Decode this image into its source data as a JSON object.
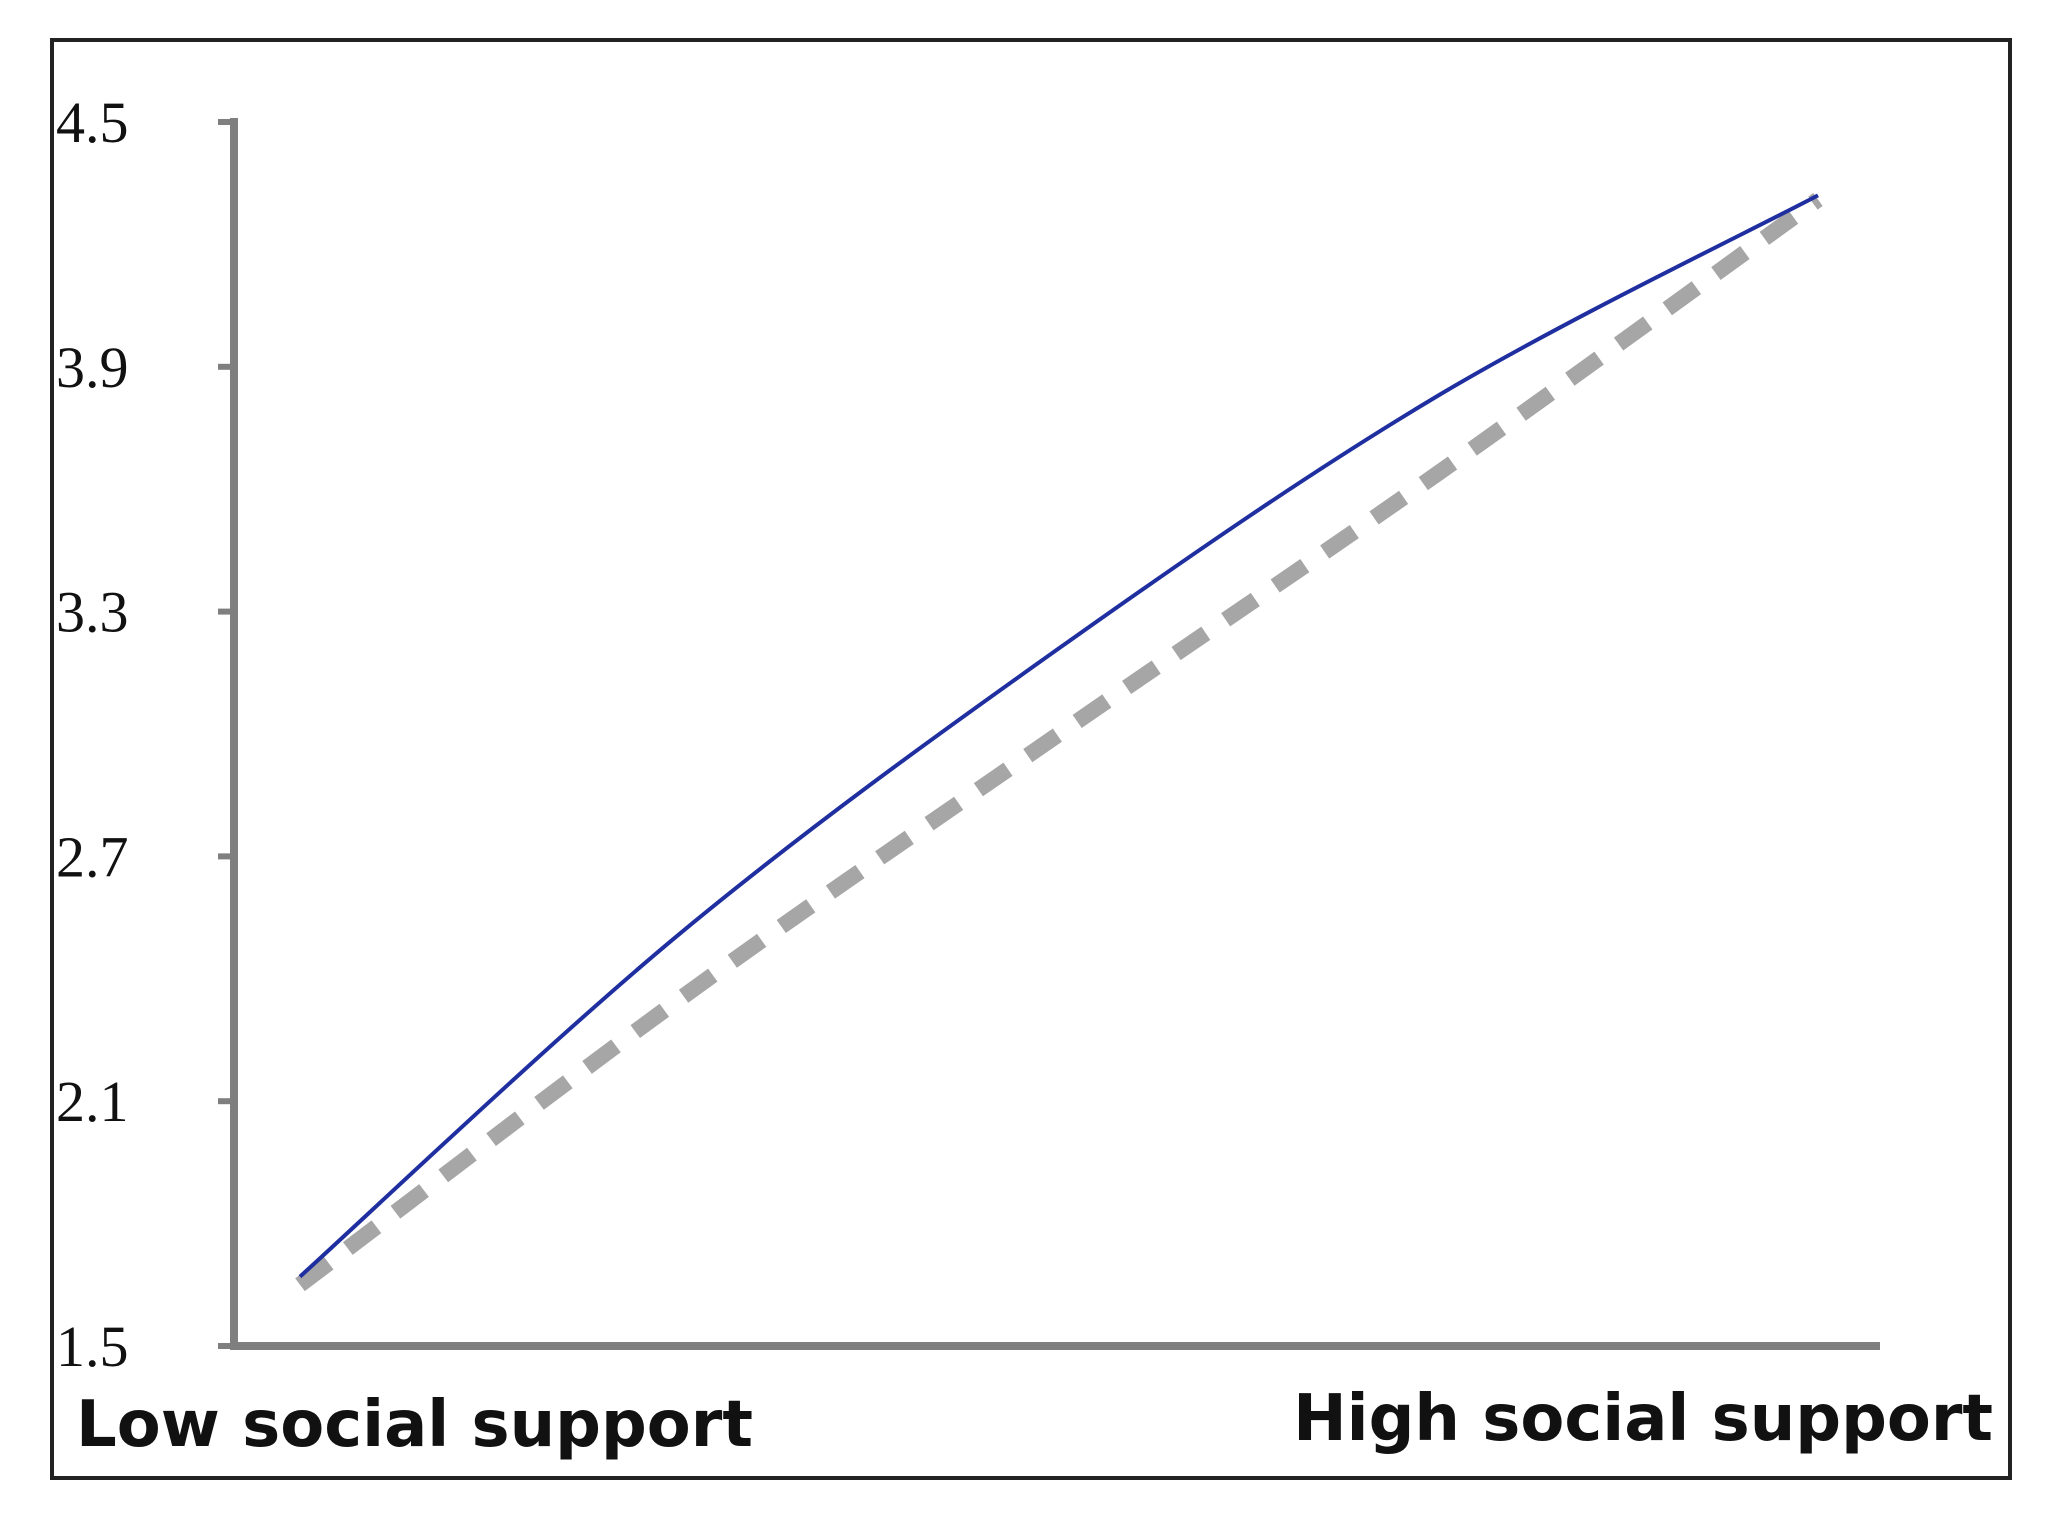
{
  "chart_data": {
    "type": "line",
    "title": "",
    "xlabel": "",
    "ylabel": "",
    "categories": [
      "Low social support",
      "High social support"
    ],
    "ylim": [
      1.5,
      4.5
    ],
    "yticks": [
      "1.5",
      "2.1",
      "2.7",
      "3.3",
      "3.9",
      "4.5"
    ],
    "grid": false,
    "legend": "none",
    "series": [
      {
        "style": "solid",
        "color": "#1f2fa0",
        "x": [
          0,
          0.25,
          0.5,
          0.75,
          1
        ],
        "y": [
          1.67,
          2.51,
          3.21,
          3.83,
          4.32
        ]
      },
      {
        "style": "dashed",
        "color": "#a6a6a6",
        "x": [
          0,
          0.25,
          0.5,
          0.75,
          1
        ],
        "y": [
          1.65,
          2.35,
          3.0,
          3.64,
          4.31
        ]
      }
    ]
  }
}
